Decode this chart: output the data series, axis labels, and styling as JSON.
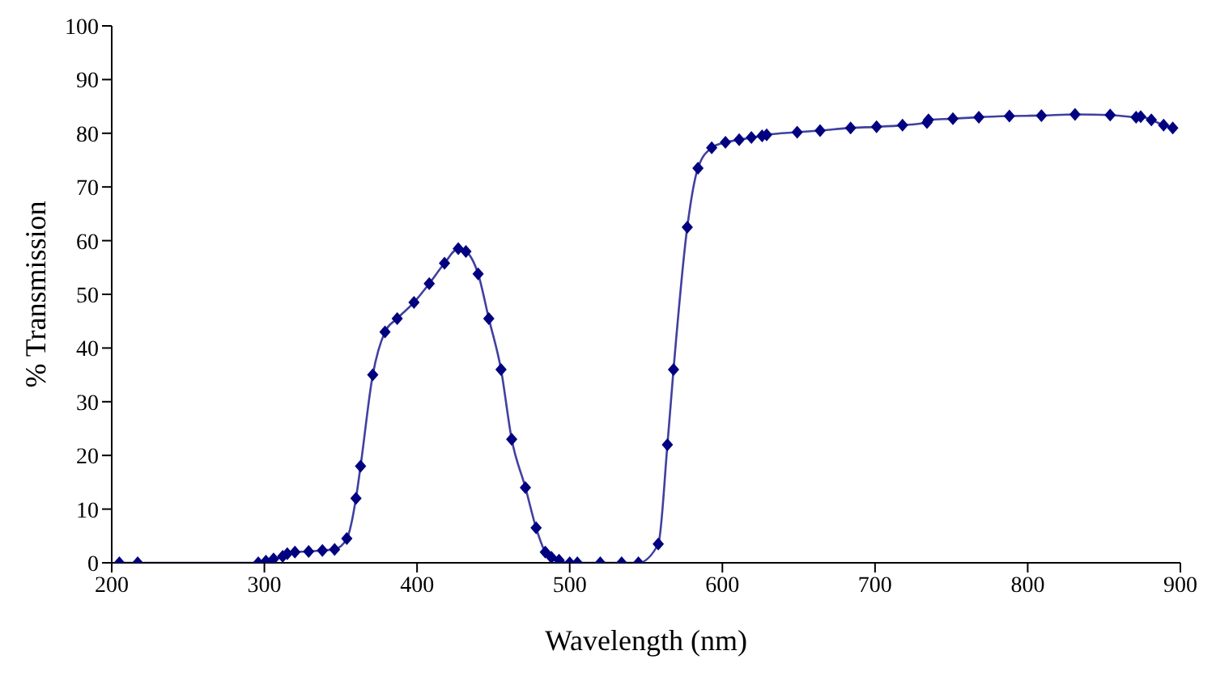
{
  "chart_data": {
    "type": "line",
    "xlabel": "Wavelength (nm)",
    "ylabel": "% Transmission",
    "xlim": [
      200,
      900
    ],
    "xticks": [
      200,
      300,
      400,
      500,
      600,
      700,
      800,
      900
    ],
    "ylim": [
      0,
      100
    ],
    "yticks": [
      0,
      10,
      20,
      30,
      40,
      50,
      60,
      70,
      80,
      90,
      100
    ],
    "marker": "diamond",
    "line_style": "solid",
    "series": [
      {
        "color": "#000080",
        "x": [
          205,
          217,
          296,
          301,
          306,
          312,
          315,
          320,
          329,
          338,
          346,
          354,
          360,
          363,
          371,
          379,
          387,
          398,
          408,
          418,
          427,
          432,
          440,
          447,
          455,
          462,
          471,
          478,
          484,
          488,
          493,
          500,
          505,
          520,
          534,
          545,
          558,
          564,
          568,
          577,
          584,
          593,
          602,
          611,
          619,
          626,
          629,
          649,
          664,
          684,
          701,
          718,
          734,
          735,
          751,
          768,
          788,
          809,
          831,
          854,
          871,
          874,
          881,
          889,
          895
        ],
        "values": [
          0,
          0,
          0,
          0.3,
          0.7,
          1.2,
          1.7,
          2,
          2.1,
          2.3,
          2.5,
          4.5,
          12,
          18,
          35,
          43,
          45.5,
          48.5,
          52,
          55.8,
          58.5,
          58,
          53.8,
          45.5,
          36,
          23,
          14,
          6.5,
          2,
          1,
          0.5,
          0,
          0,
          0,
          0,
          0,
          3.5,
          22,
          36,
          62.5,
          73.5,
          77.3,
          78.3,
          78.8,
          79.2,
          79.5,
          79.7,
          80.2,
          80.5,
          81,
          81.2,
          81.5,
          82,
          82.5,
          82.7,
          83,
          83.2,
          83.3,
          83.5,
          83.4,
          83,
          83.1,
          82.5,
          81.5,
          81
        ]
      }
    ]
  }
}
